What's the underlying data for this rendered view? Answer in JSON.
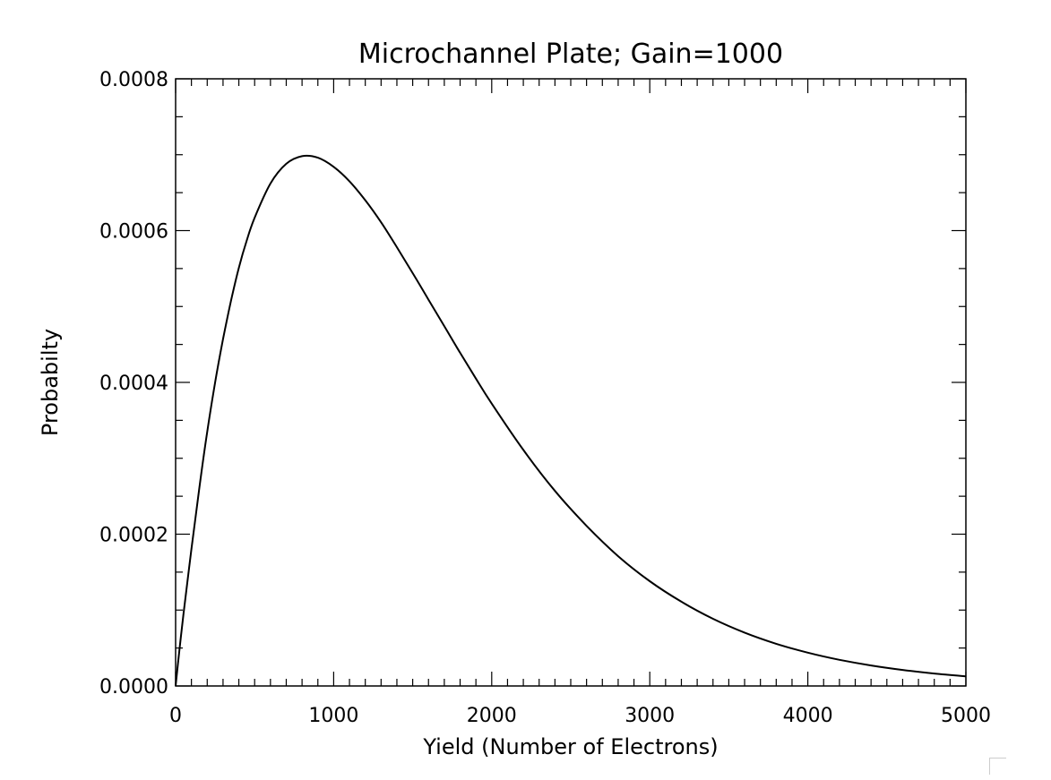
{
  "chart_data": {
    "type": "line",
    "title": "Microchannel Plate; Gain=1000",
    "xlabel": "Yield (Number of Electrons)",
    "ylabel": "Probabilty",
    "xlim": [
      0,
      5000
    ],
    "ylim": [
      0,
      0.0008
    ],
    "x_ticks": [
      "0",
      "1000",
      "2000",
      "3000",
      "4000",
      "5000"
    ],
    "y_ticks": [
      "0.0000",
      "0.0002",
      "0.0004",
      "0.0006",
      "0.0008"
    ],
    "grid": false,
    "series": [
      {
        "x": [
          0,
          25,
          50,
          100,
          150,
          200,
          250,
          300,
          350,
          400,
          450,
          500,
          600,
          700,
          800,
          900,
          1000,
          1100,
          1200,
          1300,
          1400,
          1500,
          1600,
          1700,
          1800,
          1900,
          2000,
          2200,
          2400,
          2600,
          2800,
          3000,
          3200,
          3400,
          3600,
          3800,
          4000,
          4200,
          4400,
          4600,
          4800,
          5000
        ],
        "values": [
          0,
          4.9e-05,
          9.5e-05,
          0.00018,
          0.000261,
          0.000335,
          0.0004,
          0.000457,
          0.000507,
          0.000551,
          0.000587,
          0.000617,
          0.000662,
          0.000688,
          0.000698,
          0.000696,
          0.000684,
          0.000665,
          0.00064,
          0.000611,
          0.000578,
          0.000544,
          0.000509,
          0.000474,
          0.000439,
          0.000405,
          0.000372,
          0.000311,
          0.000257,
          0.000211,
          0.000171,
          0.000138,
          0.000111,
          8.85e-05,
          7.03e-05,
          5.56e-05,
          4.39e-05,
          3.45e-05,
          2.7e-05,
          2.11e-05,
          1.64e-05,
          1.27e-05
        ]
      }
    ]
  }
}
